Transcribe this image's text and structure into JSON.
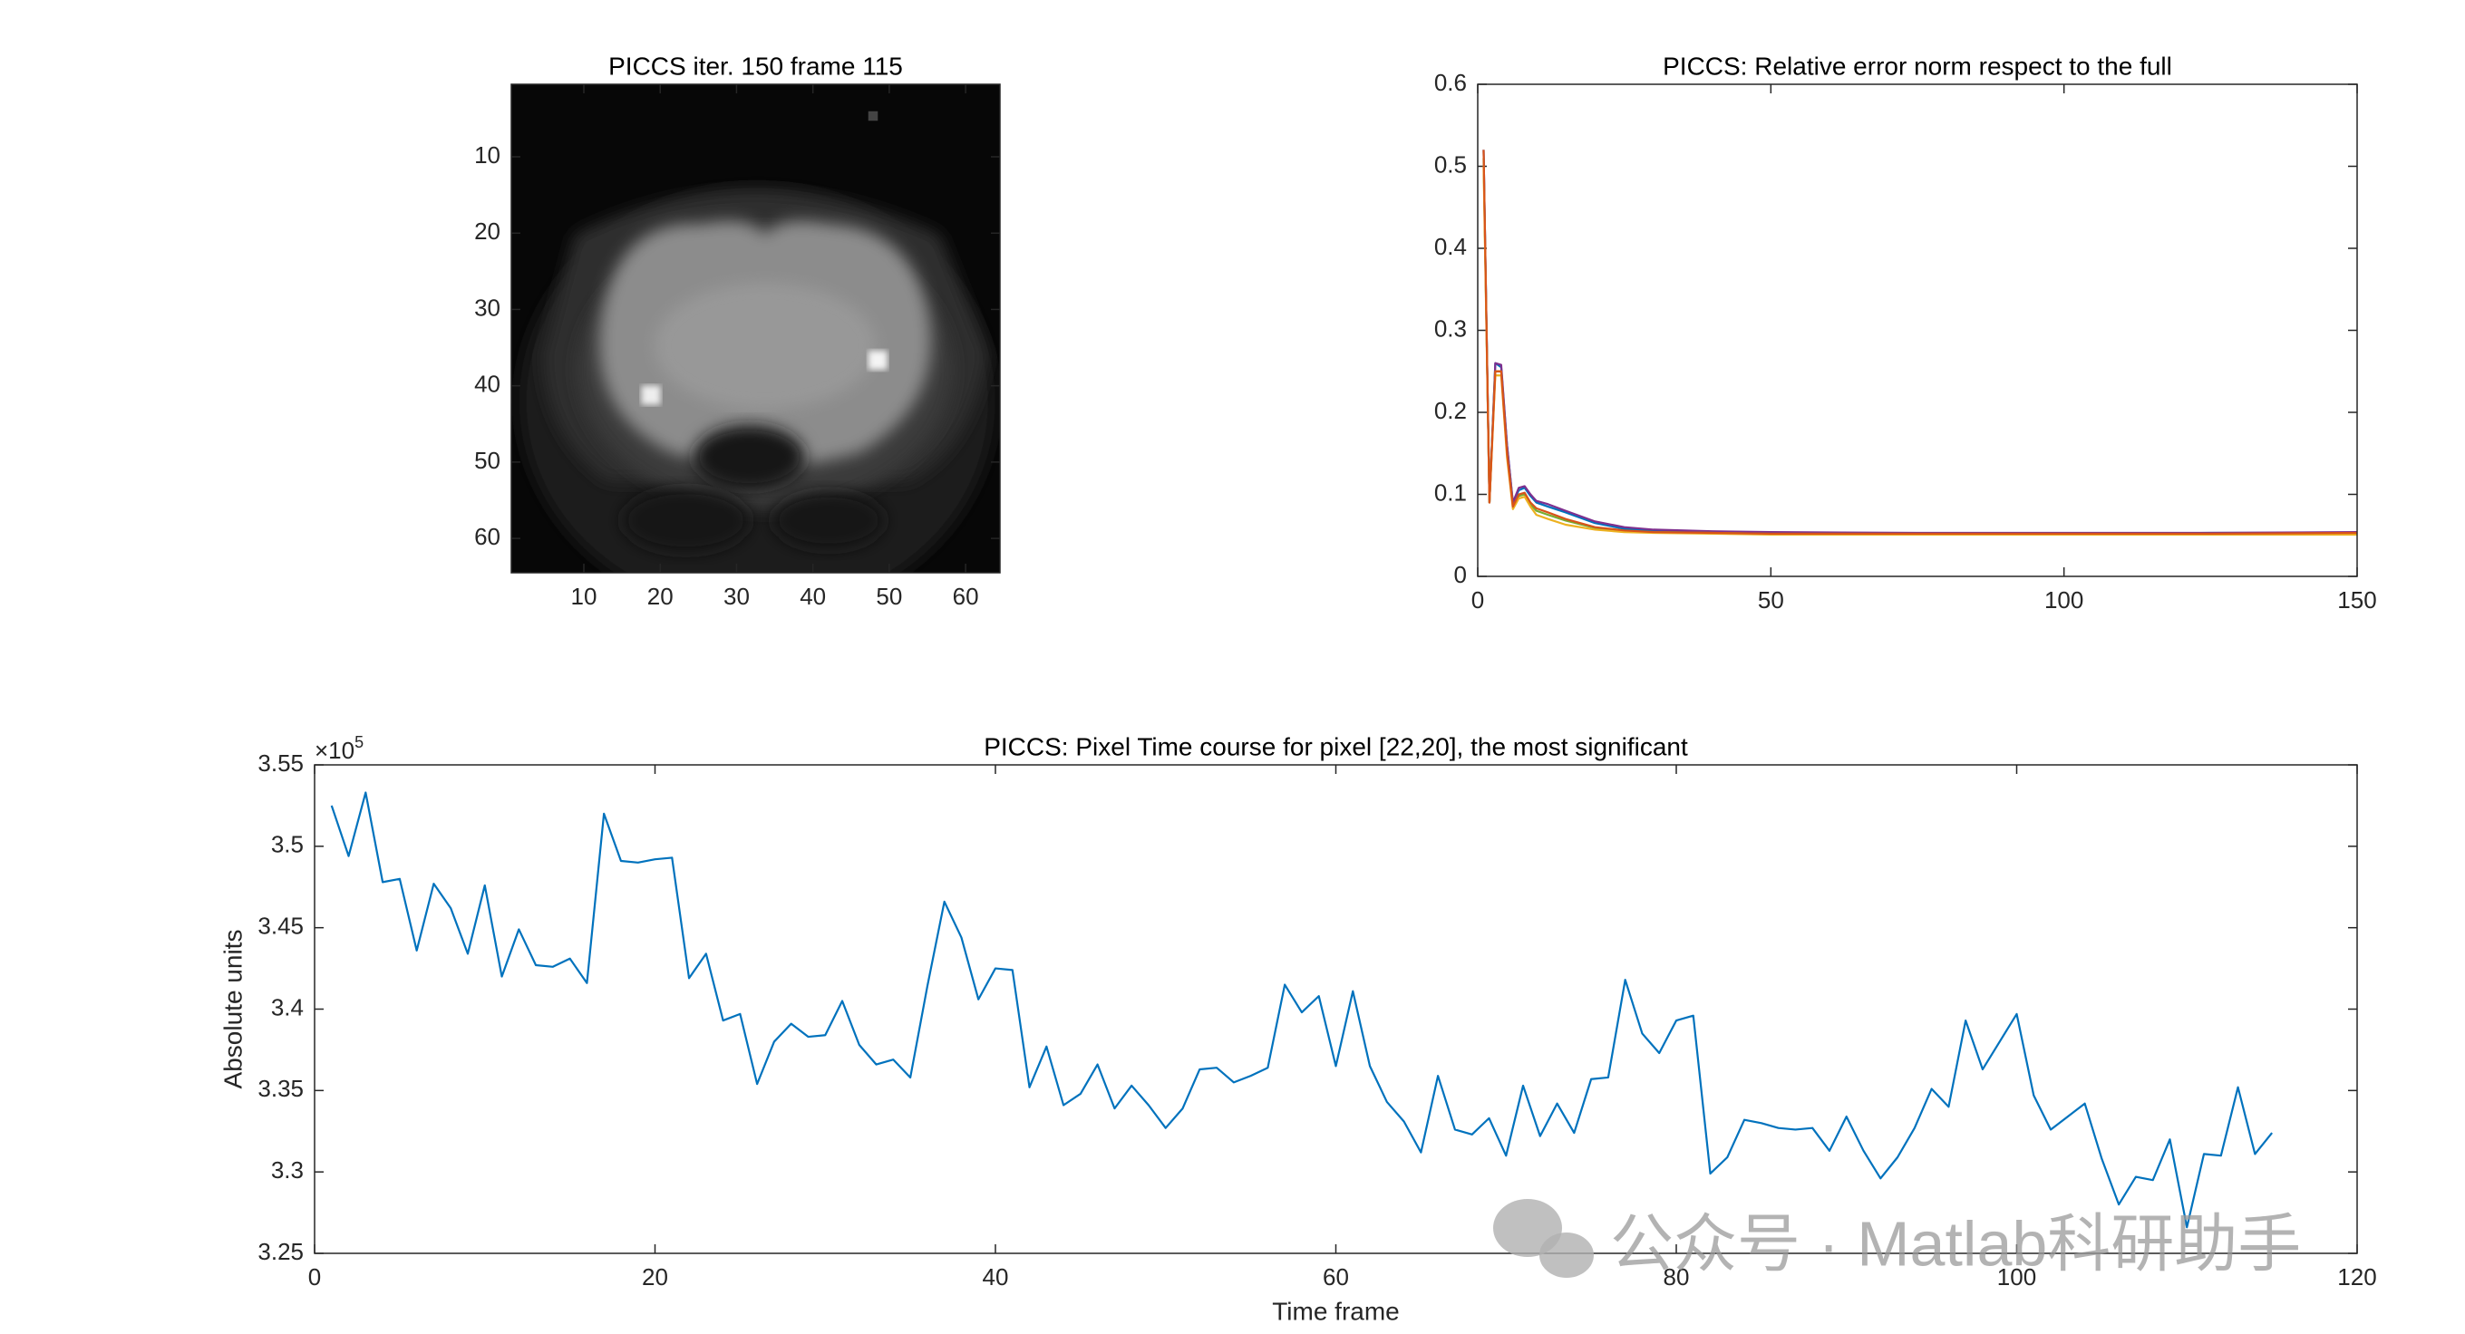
{
  "chart_data": [
    {
      "type": "image",
      "title": "PICCS iter. 150 frame 115",
      "xlim": [
        0.5,
        64.5
      ],
      "ylim": [
        0.5,
        64.5
      ],
      "y_reversed": true,
      "xticks": [
        10,
        20,
        30,
        40,
        50,
        60
      ],
      "yticks": [
        10,
        20,
        30,
        40,
        50,
        60
      ]
    },
    {
      "type": "line",
      "title": "PICCS: Relative error norm respect to the full",
      "x": [
        1,
        2,
        3,
        4,
        5,
        6,
        7,
        8,
        9,
        10,
        12,
        15,
        20,
        25,
        30,
        40,
        50,
        75,
        100,
        125,
        150
      ],
      "series": [
        {
          "color": "#0072BD",
          "values": [
            0.52,
            0.09,
            0.26,
            0.255,
            0.16,
            0.09,
            0.105,
            0.108,
            0.098,
            0.09,
            0.085,
            0.078,
            0.065,
            0.058,
            0.056,
            0.054,
            0.053,
            0.052,
            0.052,
            0.053,
            0.053
          ]
        },
        {
          "color": "#7E2F8E",
          "values": [
            0.52,
            0.09,
            0.26,
            0.258,
            0.16,
            0.09,
            0.108,
            0.11,
            0.1,
            0.092,
            0.088,
            0.08,
            0.067,
            0.06,
            0.057,
            0.055,
            0.054,
            0.053,
            0.053,
            0.053,
            0.054
          ]
        },
        {
          "color": "#77AC30",
          "values": [
            0.51,
            0.09,
            0.25,
            0.25,
            0.15,
            0.085,
            0.098,
            0.1,
            0.088,
            0.08,
            0.075,
            0.068,
            0.059,
            0.055,
            0.054,
            0.053,
            0.052,
            0.052,
            0.052,
            0.052,
            0.052
          ]
        },
        {
          "color": "#EDB120",
          "values": [
            0.5,
            0.09,
            0.245,
            0.245,
            0.145,
            0.082,
            0.095,
            0.097,
            0.085,
            0.075,
            0.07,
            0.063,
            0.057,
            0.054,
            0.053,
            0.052,
            0.051,
            0.051,
            0.051,
            0.051,
            0.051
          ]
        },
        {
          "color": "#D95319",
          "values": [
            0.52,
            0.09,
            0.25,
            0.25,
            0.15,
            0.085,
            0.1,
            0.102,
            0.09,
            0.083,
            0.078,
            0.07,
            0.06,
            0.056,
            0.054,
            0.053,
            0.052,
            0.052,
            0.052,
            0.052,
            0.053
          ]
        }
      ],
      "xlim": [
        0,
        150
      ],
      "xticks": [
        0,
        50,
        100,
        150
      ],
      "ylim": [
        0,
        0.6
      ],
      "yticks": [
        0,
        0.1,
        0.2,
        0.3,
        0.4,
        0.5,
        0.6
      ]
    },
    {
      "type": "line",
      "title": "PICCS: Pixel Time course for pixel [22,20], the most significant",
      "x_label": "Time frame",
      "y_label": "Absolute units",
      "y_scale_label": "×10",
      "y_scale_exponent": "5",
      "x": [
        1,
        2,
        3,
        4,
        5,
        6,
        7,
        8,
        9,
        10,
        11,
        12,
        13,
        14,
        15,
        16,
        17,
        18,
        19,
        20,
        21,
        22,
        23,
        24,
        25,
        26,
        27,
        28,
        29,
        30,
        31,
        32,
        33,
        34,
        35,
        36,
        37,
        38,
        39,
        40,
        41,
        42,
        43,
        44,
        45,
        46,
        47,
        48,
        49,
        50,
        51,
        52,
        53,
        54,
        55,
        56,
        57,
        58,
        59,
        60,
        61,
        62,
        63,
        64,
        65,
        66,
        67,
        68,
        69,
        70,
        71,
        72,
        73,
        74,
        75,
        76,
        77,
        78,
        79,
        80,
        81,
        82,
        83,
        84,
        85,
        86,
        87,
        88,
        89,
        90,
        91,
        92,
        93,
        94,
        95,
        96,
        97,
        98,
        99,
        100,
        101,
        102,
        103,
        104,
        105,
        106,
        107,
        108,
        109,
        110,
        111,
        112,
        113,
        114,
        115
      ],
      "series": [
        {
          "color": "#0072BD",
          "values": [
            352500,
            349400,
            353300,
            347800,
            348000,
            343600,
            347700,
            346200,
            343400,
            347600,
            342000,
            344900,
            342700,
            342600,
            343100,
            341600,
            352000,
            349100,
            349000,
            349200,
            349300,
            341900,
            343400,
            339300,
            339700,
            335400,
            338000,
            339100,
            338300,
            338400,
            340500,
            337800,
            336600,
            336900,
            335800,
            341400,
            346600,
            344400,
            340600,
            342500,
            342400,
            335200,
            337700,
            334100,
            334800,
            336600,
            333900,
            335300,
            334100,
            332700,
            333900,
            336300,
            336400,
            335500,
            335900,
            336400,
            341500,
            339800,
            340800,
            336500,
            341100,
            336500,
            334300,
            333100,
            331200,
            335900,
            332600,
            332300,
            333300,
            331000,
            335300,
            332200,
            334200,
            332400,
            335700,
            335800,
            341800,
            338500,
            337300,
            339300,
            339600,
            329900,
            330900,
            333200,
            333000,
            332700,
            332600,
            332700,
            331300,
            333400,
            331300,
            329600,
            330900,
            332700,
            335100,
            334000,
            339300,
            336300,
            338000,
            339700,
            334700,
            332600,
            333400,
            334200,
            330800,
            328000,
            329700,
            329500,
            332000,
            326600,
            331100,
            331000,
            335200,
            331100,
            332400
          ]
        }
      ],
      "xlim": [
        0,
        120
      ],
      "xticks": [
        0,
        20,
        40,
        60,
        80,
        100,
        120
      ],
      "ylim": [
        325000,
        355000
      ],
      "yticks": [
        {
          "value": 325000,
          "label": "3.25"
        },
        {
          "value": 330000,
          "label": "3.3"
        },
        {
          "value": 335000,
          "label": "3.35"
        },
        {
          "value": 340000,
          "label": "3.4"
        },
        {
          "value": 345000,
          "label": "3.45"
        },
        {
          "value": 350000,
          "label": "3.5"
        },
        {
          "value": 355000,
          "label": "3.55"
        }
      ]
    }
  ],
  "watermark": "公众号 · Matlab科研助手"
}
